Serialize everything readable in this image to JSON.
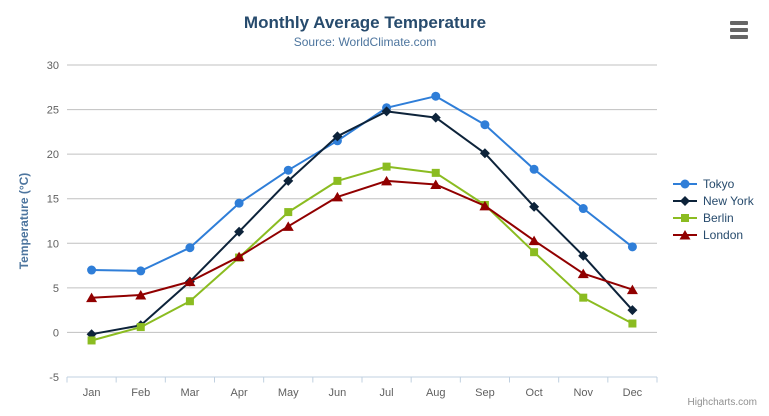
{
  "chart": {
    "title": "Monthly Average Temperature",
    "subtitle": "Source: WorldClimate.com",
    "credits": "Highcharts.com"
  },
  "chart_data": {
    "type": "line",
    "title": "Monthly Average Temperature",
    "subtitle": "Source: WorldClimate.com",
    "categories": [
      "Jan",
      "Feb",
      "Mar",
      "Apr",
      "May",
      "Jun",
      "Jul",
      "Aug",
      "Sep",
      "Oct",
      "Nov",
      "Dec"
    ],
    "series": [
      {
        "name": "Tokyo",
        "marker": "circle",
        "color": "#2f7ed8",
        "values": [
          7.0,
          6.9,
          9.5,
          14.5,
          18.2,
          21.5,
          25.2,
          26.5,
          23.3,
          18.3,
          13.9,
          9.6
        ]
      },
      {
        "name": "New York",
        "marker": "diamond",
        "color": "#0d233a",
        "values": [
          -0.2,
          0.8,
          5.7,
          11.3,
          17.0,
          22.0,
          24.8,
          24.1,
          20.1,
          14.1,
          8.6,
          2.5
        ]
      },
      {
        "name": "Berlin",
        "marker": "square",
        "color": "#8bbc21",
        "values": [
          -0.9,
          0.6,
          3.5,
          8.4,
          13.5,
          17.0,
          18.6,
          17.9,
          14.3,
          9.0,
          3.9,
          1.0
        ]
      },
      {
        "name": "London",
        "marker": "triangle",
        "color": "#910000",
        "values": [
          3.9,
          4.2,
          5.7,
          8.5,
          11.9,
          15.2,
          17.0,
          16.6,
          14.2,
          10.3,
          6.6,
          4.8
        ]
      }
    ],
    "xlabel": "",
    "ylabel": "Temperature (°C)",
    "ylim": [
      -5,
      30
    ],
    "tick_interval": 5,
    "grid": true,
    "legend_position": "right"
  },
  "colors": {
    "title_text": "#274b6d",
    "subtitle_text": "#4d759e",
    "axis_label_text": "#606060",
    "axis_line": "#c0d0e0",
    "gridline": "#c0c0c0",
    "legend_text": "#274b6d",
    "credits_text": "#909090",
    "menu_icon": "#666666"
  }
}
